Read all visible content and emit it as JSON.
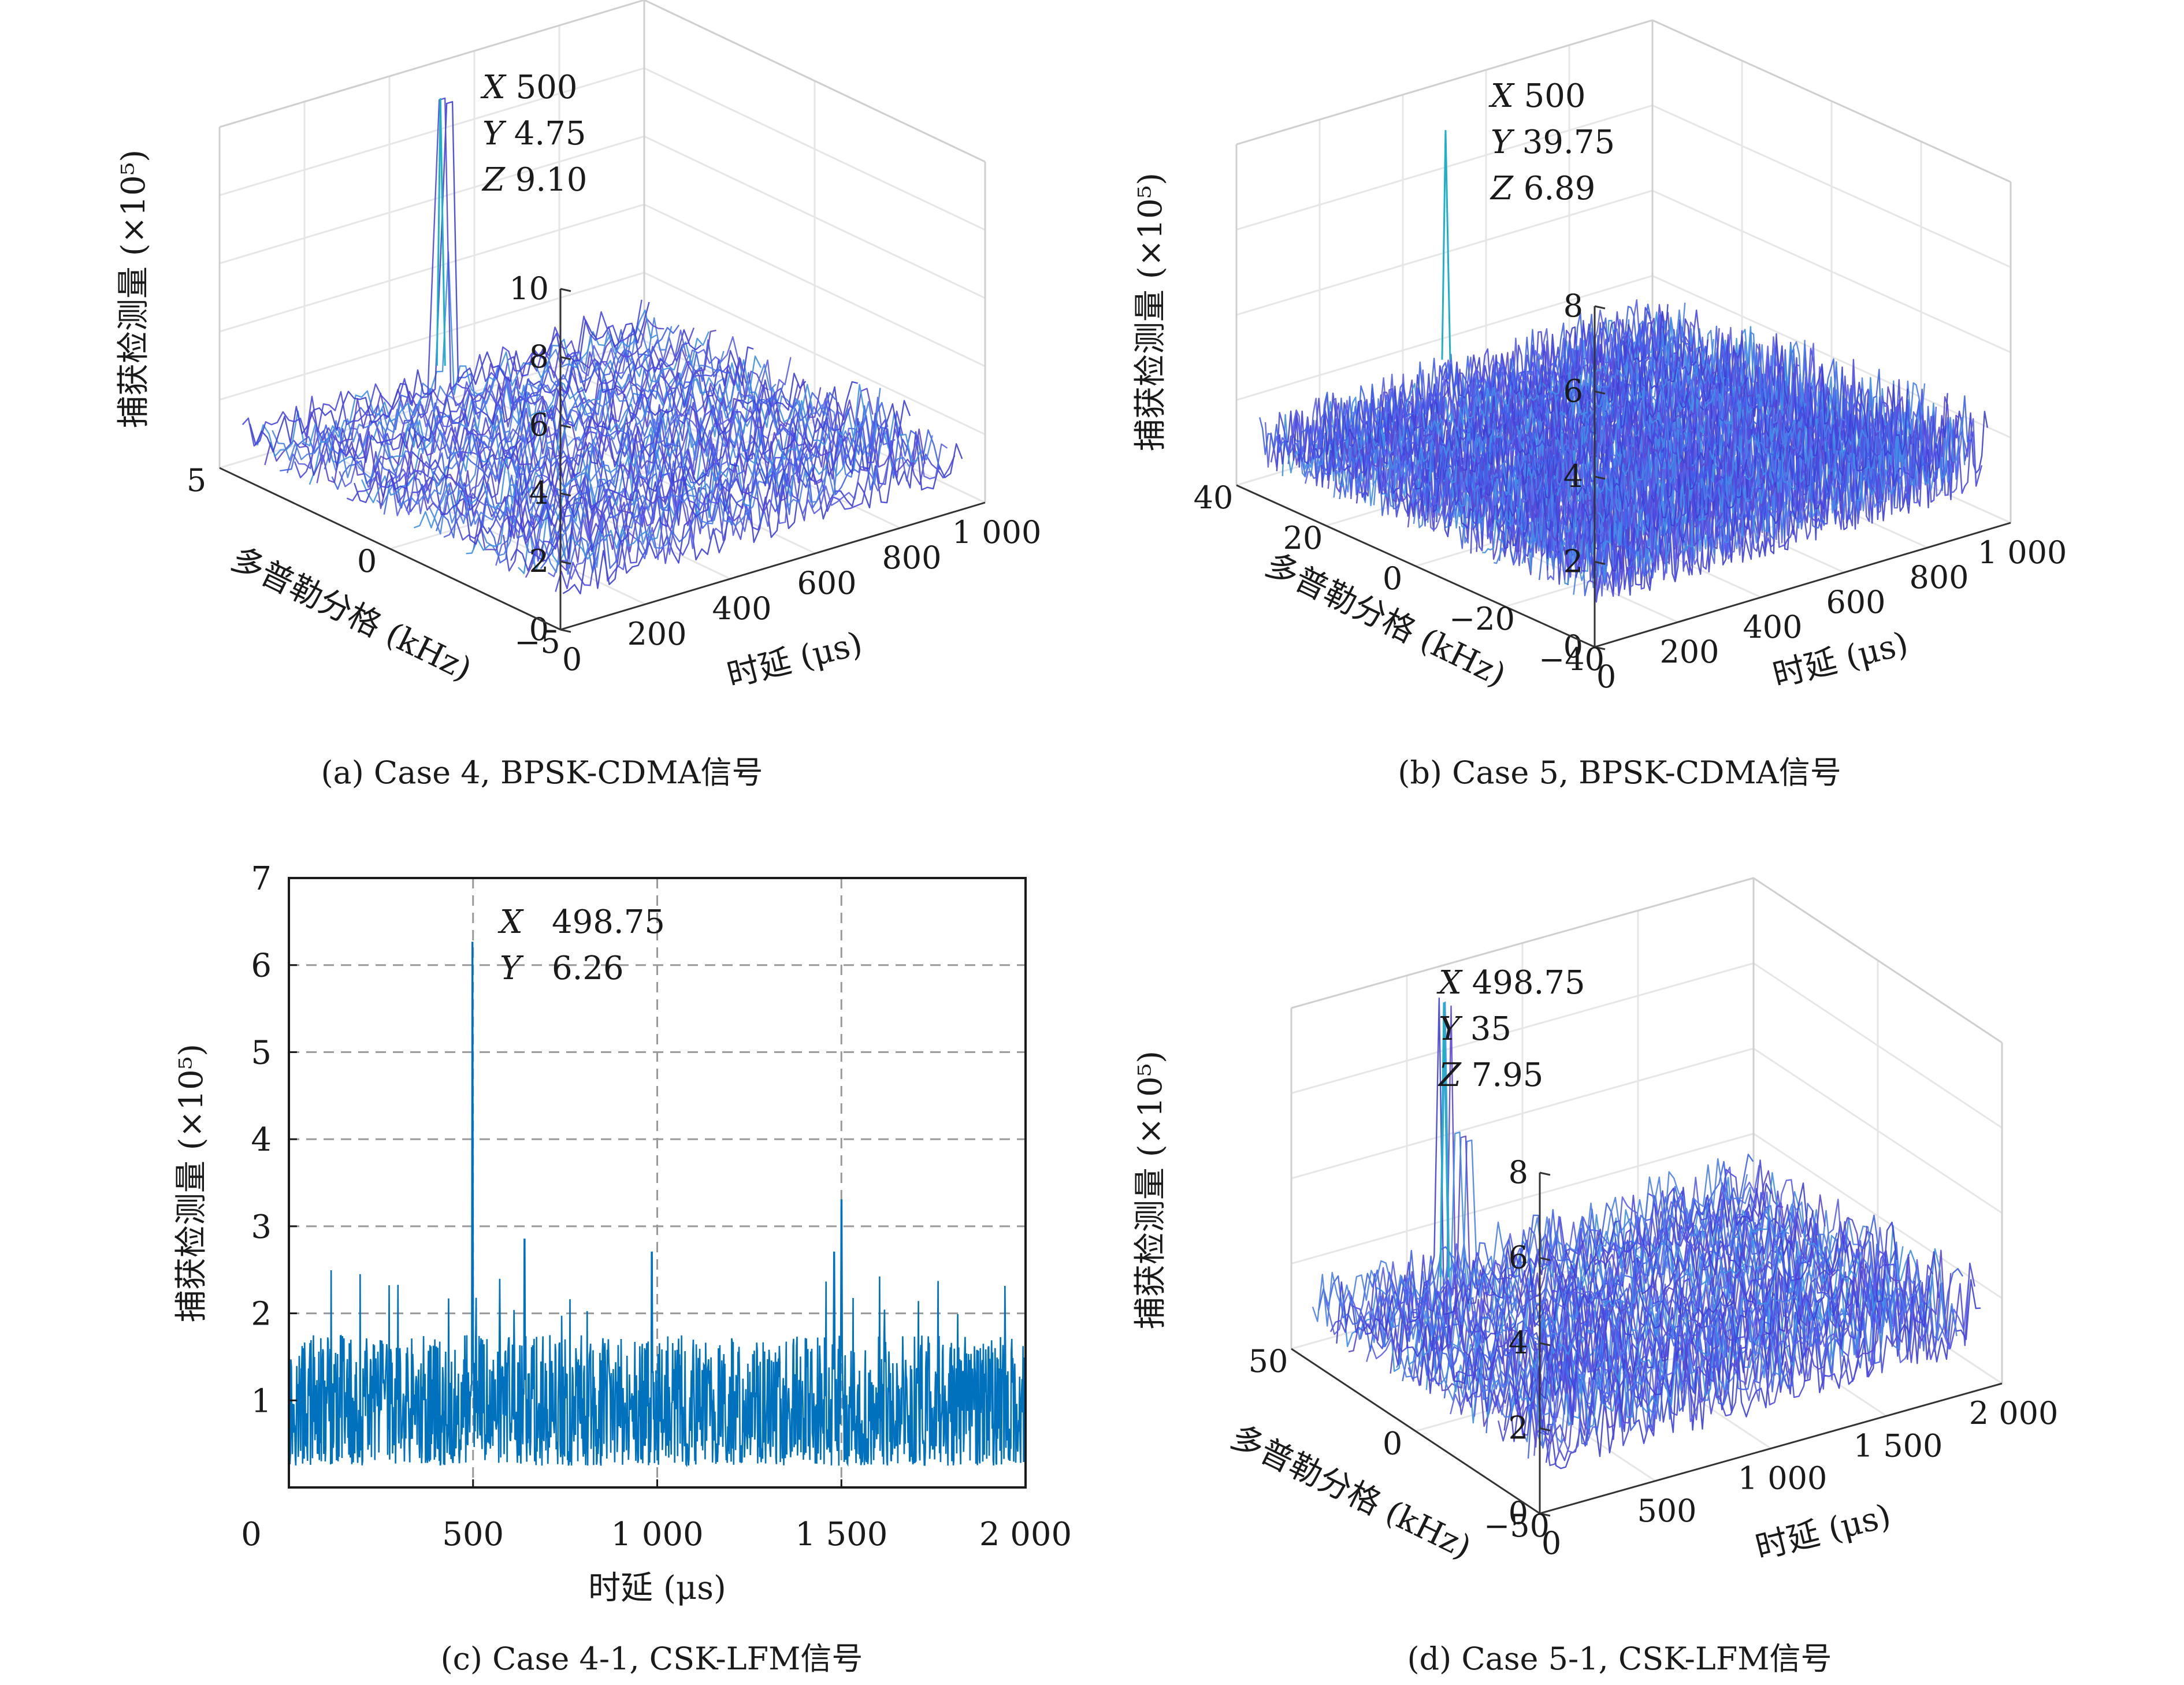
{
  "chart_data": [
    {
      "id": "a",
      "type": "surface3d",
      "caption": "(a) Case 4, BPSK-CDMA信号",
      "zlabel": "捕获检测量 (×10⁵)",
      "xlabel": "时延 (μs)",
      "ylabel": "多普勒分格 (kHz)",
      "x_ticks": [
        "0",
        "200",
        "400",
        "600",
        "800",
        "1 000"
      ],
      "y_ticks": [
        "5",
        "0",
        "−5"
      ],
      "z_ticks": [
        "0",
        "2",
        "4",
        "6",
        "8",
        "10"
      ],
      "xlim": [
        0,
        1000
      ],
      "ylim": [
        -5,
        5
      ],
      "zlim": [
        0,
        10
      ],
      "datatip": [
        "X 500",
        "Y 4.75",
        "Z 9.10"
      ],
      "peak": {
        "x": 500,
        "y": 4.75,
        "z": 9.1
      },
      "noise_level": 2.5,
      "secondary_peaks": [
        {
          "x": 480,
          "y": 4.5,
          "z": 4.9
        }
      ]
    },
    {
      "id": "b",
      "type": "surface3d",
      "caption": "(b) Case 5, BPSK-CDMA信号",
      "zlabel": "捕获检测量 (×10⁵)",
      "xlabel": "时延 (μs)",
      "ylabel": "多普勒分格 (kHz)",
      "x_ticks": [
        "0",
        "200",
        "400",
        "600",
        "800",
        "1 000"
      ],
      "y_ticks": [
        "40",
        "20",
        "0",
        "−20",
        "−40"
      ],
      "z_ticks": [
        "0",
        "2",
        "4",
        "6",
        "8"
      ],
      "xlim": [
        0,
        1000
      ],
      "ylim": [
        -40,
        40
      ],
      "zlim": [
        0,
        8
      ],
      "datatip": [
        "X 500",
        "Y 39.75",
        "Z 6.89"
      ],
      "peak": {
        "x": 500,
        "y": 39.75,
        "z": 6.89
      },
      "noise_level": 3.0,
      "secondary_peaks": []
    },
    {
      "id": "c",
      "type": "line",
      "caption": "(c) Case 4-1, CSK-LFM信号",
      "ylabel": "捕获检测量 (×10⁵)",
      "xlabel": "时延 (μs)",
      "x_ticks": [
        "0",
        "500",
        "1 000",
        "1 500",
        "2 000"
      ],
      "y_ticks": [
        "1",
        "2",
        "3",
        "4",
        "5",
        "6",
        "7"
      ],
      "xlim": [
        0,
        2000
      ],
      "ylim": [
        0,
        7
      ],
      "datatip": [
        [
          "X",
          "498.75"
        ],
        [
          "Y",
          "6.26"
        ]
      ],
      "peak": {
        "x": 498.75,
        "y": 6.26
      },
      "noise_level": 0.8,
      "secondary_peaks": [
        {
          "x": 1500,
          "y": 3.3
        },
        {
          "x": 1480,
          "y": 2.7
        },
        {
          "x": 640,
          "y": 2.85
        },
        {
          "x": 985,
          "y": 2.7
        }
      ]
    },
    {
      "id": "d",
      "type": "surface3d",
      "caption": "(d) Case 5-1, CSK-LFM信号",
      "zlabel": "捕获检测量 (×10⁵)",
      "xlabel": "时延 (μs)",
      "ylabel": "多普勒分格 (kHz)",
      "x_ticks": [
        "0",
        "500",
        "1 000",
        "1 500",
        "2 000"
      ],
      "y_ticks": [
        "50",
        "0",
        "−50"
      ],
      "z_ticks": [
        "0",
        "2",
        "4",
        "6",
        "8"
      ],
      "xlim": [
        0,
        2000
      ],
      "ylim": [
        -50,
        50
      ],
      "zlim": [
        0,
        8
      ],
      "datatip": [
        "X 498.75",
        "Y 35",
        "Z 7.95"
      ],
      "peak": {
        "x": 498.75,
        "y": 35,
        "z": 7.95
      },
      "noise_level": 3.0,
      "secondary_peaks": [
        {
          "x": 560,
          "y": 33,
          "z": 4.8
        }
      ]
    }
  ]
}
